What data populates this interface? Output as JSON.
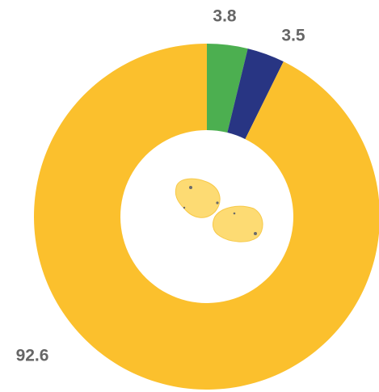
{
  "chart_data": {
    "type": "donut",
    "categories": [
      null,
      null,
      null
    ],
    "values": [
      3.8,
      3.5,
      92.6
    ],
    "colors": [
      "#4caf50",
      "#283583",
      "#fbc02d"
    ]
  }
}
